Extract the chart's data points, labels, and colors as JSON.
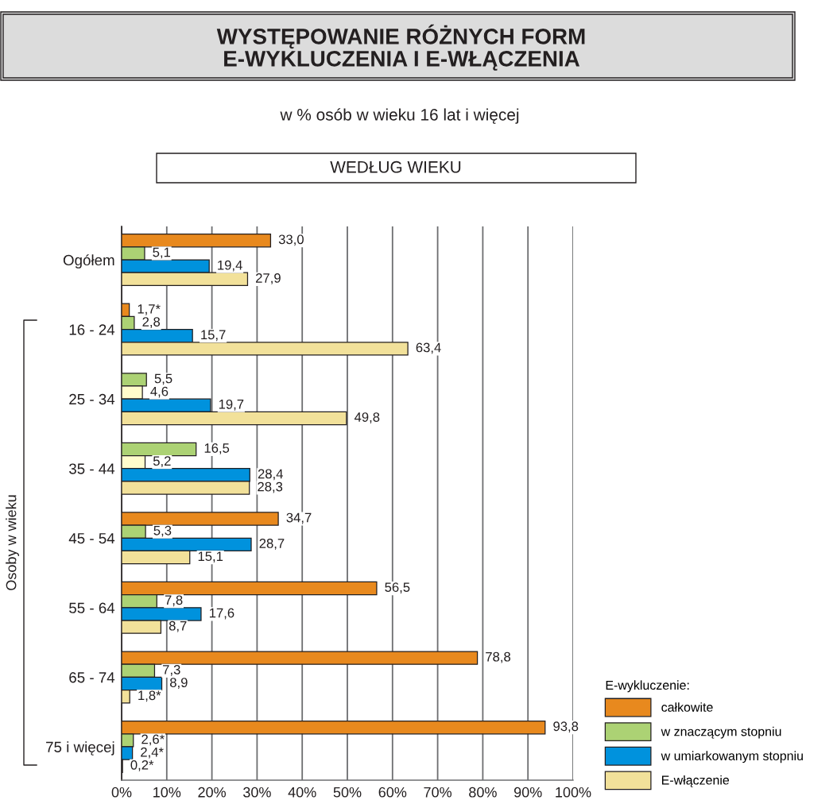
{
  "chart_data": {
    "type": "bar",
    "orientation": "horizontal",
    "title": "WYSTĘPOWANIE RÓŻNYCH FORM\nE-WYKLUCZENIA I E-WŁĄCZENIA",
    "subtitle": "w % osób w wieku 16 lat i więcej",
    "annotations": [
      "WEDŁUG WIEKU"
    ],
    "ylabel": "Osoby w wieku",
    "legend_title": "E-wykluczenie:",
    "categories": [
      "Ogółem",
      "16 - 24",
      "25 - 34",
      "35 - 44",
      "45 - 54",
      "55 - 64",
      "65 - 74",
      "75 i więcej"
    ],
    "series": [
      {
        "name": "całkowite",
        "color": "#e8891e",
        "values": [
          33.0,
          1.7,
          null,
          null,
          34.7,
          56.5,
          78.8,
          93.8
        ],
        "value_labels": [
          "33,0",
          "1,7*",
          null,
          null,
          "34,7",
          "56,5",
          "78,8",
          "93,8"
        ]
      },
      {
        "name": "w znaczącym stopniu",
        "color": "#acd274",
        "values": [
          5.1,
          2.8,
          5.5,
          16.5,
          5.3,
          7.8,
          7.3,
          2.6
        ],
        "value_labels": [
          "5,1",
          "2,8",
          "5,5",
          "16,5",
          "5,3",
          "7,8",
          "7,3",
          "2,6*"
        ]
      },
      {
        "color": "#fffccc",
        "values": [
          null,
          null,
          4.6,
          5.2,
          null,
          null,
          null,
          null
        ],
        "value_labels": [
          null,
          null,
          "4,6",
          "5,2",
          null,
          null,
          null,
          null
        ]
      },
      {
        "name": "w umiarkowanym stopniu",
        "color": "#0092dd",
        "values": [
          19.4,
          15.7,
          19.7,
          28.4,
          28.7,
          17.6,
          8.9,
          2.4
        ],
        "value_labels": [
          "19,4",
          "15,7",
          "19,7",
          "28,4",
          "28,7",
          "17,6",
          "8,9",
          "2,4*"
        ]
      },
      {
        "name": "E-włączenie",
        "color": "#f2e19a",
        "values": [
          27.9,
          63.4,
          49.8,
          28.3,
          15.1,
          8.7,
          1.8,
          0.2
        ],
        "value_labels": [
          "27,9",
          "63,4",
          "49,8",
          "28,3",
          "15,1",
          "8,7",
          "1,8*",
          "0,2*"
        ]
      }
    ],
    "xlim": [
      0,
      100
    ],
    "xticks": [
      {
        "value": 0,
        "label": "0%"
      },
      {
        "value": 10,
        "label": "10%"
      },
      {
        "value": 20,
        "label": "20%"
      },
      {
        "value": 30,
        "label": "30%"
      },
      {
        "value": 40,
        "label": "40%"
      },
      {
        "value": 50,
        "label": "50%"
      },
      {
        "value": 60,
        "label": "60%"
      },
      {
        "value": 70,
        "label": "70%"
      },
      {
        "value": 80,
        "label": "80%"
      },
      {
        "value": 90,
        "label": "90%"
      },
      {
        "value": 100,
        "label": "100%"
      }
    ],
    "grid": "x",
    "legend": "bottom right"
  }
}
